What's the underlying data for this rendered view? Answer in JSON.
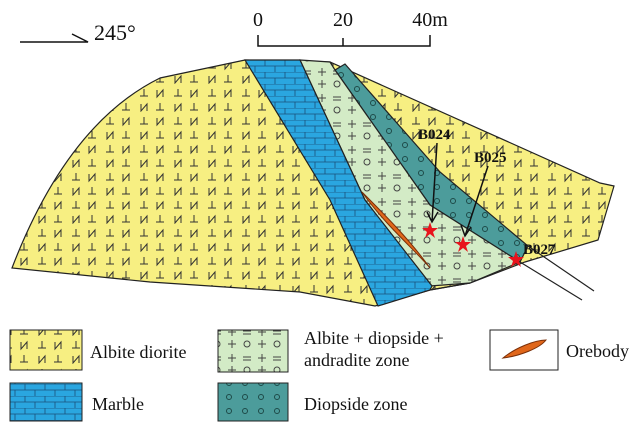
{
  "orientation": {
    "label": "245°"
  },
  "scale_bar": {
    "ticks": [
      "0",
      "20",
      "40m"
    ]
  },
  "samples": [
    {
      "label": "B024"
    },
    {
      "label": "B025"
    },
    {
      "label": "B027"
    }
  ],
  "legend": [
    {
      "label": "Albite diorite"
    },
    {
      "label_lines": [
        "Albite + diopside +",
        "andradite zone"
      ]
    },
    {
      "label": "Orebody"
    },
    {
      "label": "Marble"
    },
    {
      "label": "Diopside zone"
    }
  ]
}
